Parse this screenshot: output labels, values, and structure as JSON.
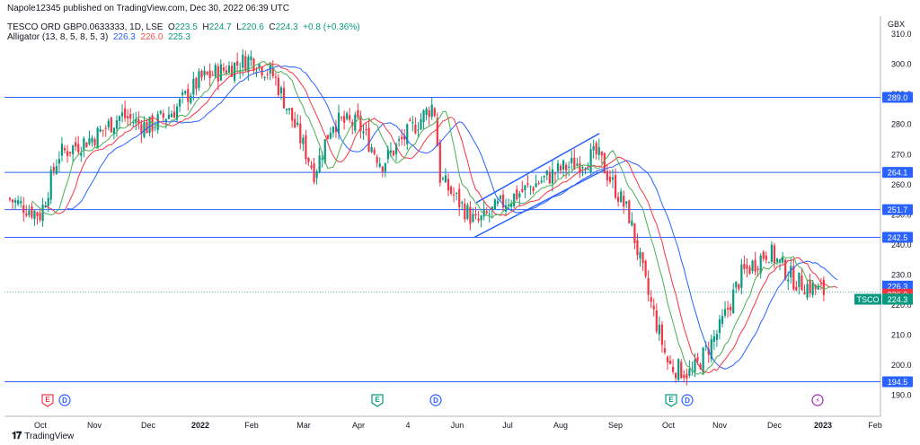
{
  "header": {
    "published": "Napole12345 published on TradingView.com, Dec 30, 2022 06:39 UTC",
    "symbol": "TESCO ORD GBP0.0633333, 1D, LSE",
    "o_label": "O",
    "o_value": "223.5",
    "h_label": "H",
    "h_value": "224.7",
    "l_label": "L",
    "l_value": "220.6",
    "c_label": "C",
    "c_value": "224.3",
    "change": "+0.8 (+0.36%)",
    "indicator": "Alligator (13, 8, 5, 8, 5, 3)",
    "jaw_value": "226.3",
    "teeth_value": "226.0",
    "lips_value": "225.3"
  },
  "footer": {
    "brand": "TradingView"
  },
  "colors": {
    "up": "#089981",
    "down": "#f23645",
    "jaw": "#2962ff",
    "teeth": "#f23645",
    "lips": "#4caf50",
    "hline": "#2962ff",
    "channel": "#2962ff"
  },
  "chart_data": {
    "type": "candlestick",
    "currency": "GBX",
    "ylim": [
      187,
      318
    ],
    "y_ticks": [
      190.0,
      200.0,
      210.0,
      220.0,
      230.0,
      240.0,
      250.0,
      260.0,
      270.0,
      280.0,
      290.0,
      300.0,
      310.0
    ],
    "x_ticks": [
      "Oct",
      "Nov",
      "Dec",
      "2022",
      "Feb",
      "Mar",
      "Apr",
      "4",
      "Jun",
      "Jul",
      "Aug",
      "Sep",
      "Oct",
      "Nov",
      "Dec",
      "2023",
      "Feb"
    ],
    "horizontal_levels": [
      289.0,
      264.1,
      251.7,
      242.5,
      194.5
    ],
    "price_labels": [
      {
        "text": "226.3",
        "series": "jaw"
      },
      {
        "text": "226.0",
        "series": "teeth"
      },
      {
        "text": "225.3",
        "series": "lips"
      },
      {
        "text": "224.3",
        "series": "last",
        "tag": "TSCO"
      }
    ],
    "channel": {
      "upper": [
        {
          "x": "Jun",
          "y": 254
        },
        {
          "x": "Aug",
          "y": 277
        }
      ],
      "lower": [
        {
          "x": "Jun",
          "y": 242.5
        },
        {
          "x": "Aug",
          "y": 265
        }
      ]
    },
    "event_markers": [
      {
        "x": "Oct",
        "kind": "E",
        "color": "red"
      },
      {
        "x": "Oct",
        "kind": "D",
        "color": "blue"
      },
      {
        "x": "Apr",
        "kind": "E",
        "color": "green"
      },
      {
        "x": "4",
        "kind": "D",
        "color": "blue"
      },
      {
        "x": "Oct",
        "kind": "E",
        "color": "green"
      },
      {
        "x": "Oct",
        "kind": "D",
        "color": "blue"
      },
      {
        "x": "2023",
        "kind": "split",
        "color": "purple"
      }
    ],
    "close_path": [
      {
        "m": "Sep 2021",
        "y": 256
      },
      {
        "m": "Oct",
        "y": 250
      },
      {
        "m": "Oct",
        "y": 270
      },
      {
        "m": "Nov",
        "y": 276
      },
      {
        "m": "Nov",
        "y": 283
      },
      {
        "m": "Dec",
        "y": 279
      },
      {
        "m": "Dec",
        "y": 285
      },
      {
        "m": "2022",
        "y": 295
      },
      {
        "m": "Feb",
        "y": 302
      },
      {
        "m": "Feb",
        "y": 296
      },
      {
        "m": "Mar",
        "y": 264
      },
      {
        "m": "Mar",
        "y": 281
      },
      {
        "m": "Apr",
        "y": 280
      },
      {
        "m": "Apr",
        "y": 267
      },
      {
        "m": "4",
        "y": 287
      },
      {
        "m": "4",
        "y": 262
      },
      {
        "m": "Jun",
        "y": 247
      },
      {
        "m": "Jul",
        "y": 255
      },
      {
        "m": "Aug",
        "y": 265
      },
      {
        "m": "Aug",
        "y": 270
      },
      {
        "m": "Sep",
        "y": 250
      },
      {
        "m": "Sep",
        "y": 225
      },
      {
        "m": "Oct",
        "y": 200
      },
      {
        "m": "Oct",
        "y": 197
      },
      {
        "m": "Nov",
        "y": 212
      },
      {
        "m": "Nov",
        "y": 230
      },
      {
        "m": "Dec",
        "y": 238
      },
      {
        "m": "Dec",
        "y": 228
      },
      {
        "m": "2023",
        "y": 224.3
      }
    ]
  }
}
